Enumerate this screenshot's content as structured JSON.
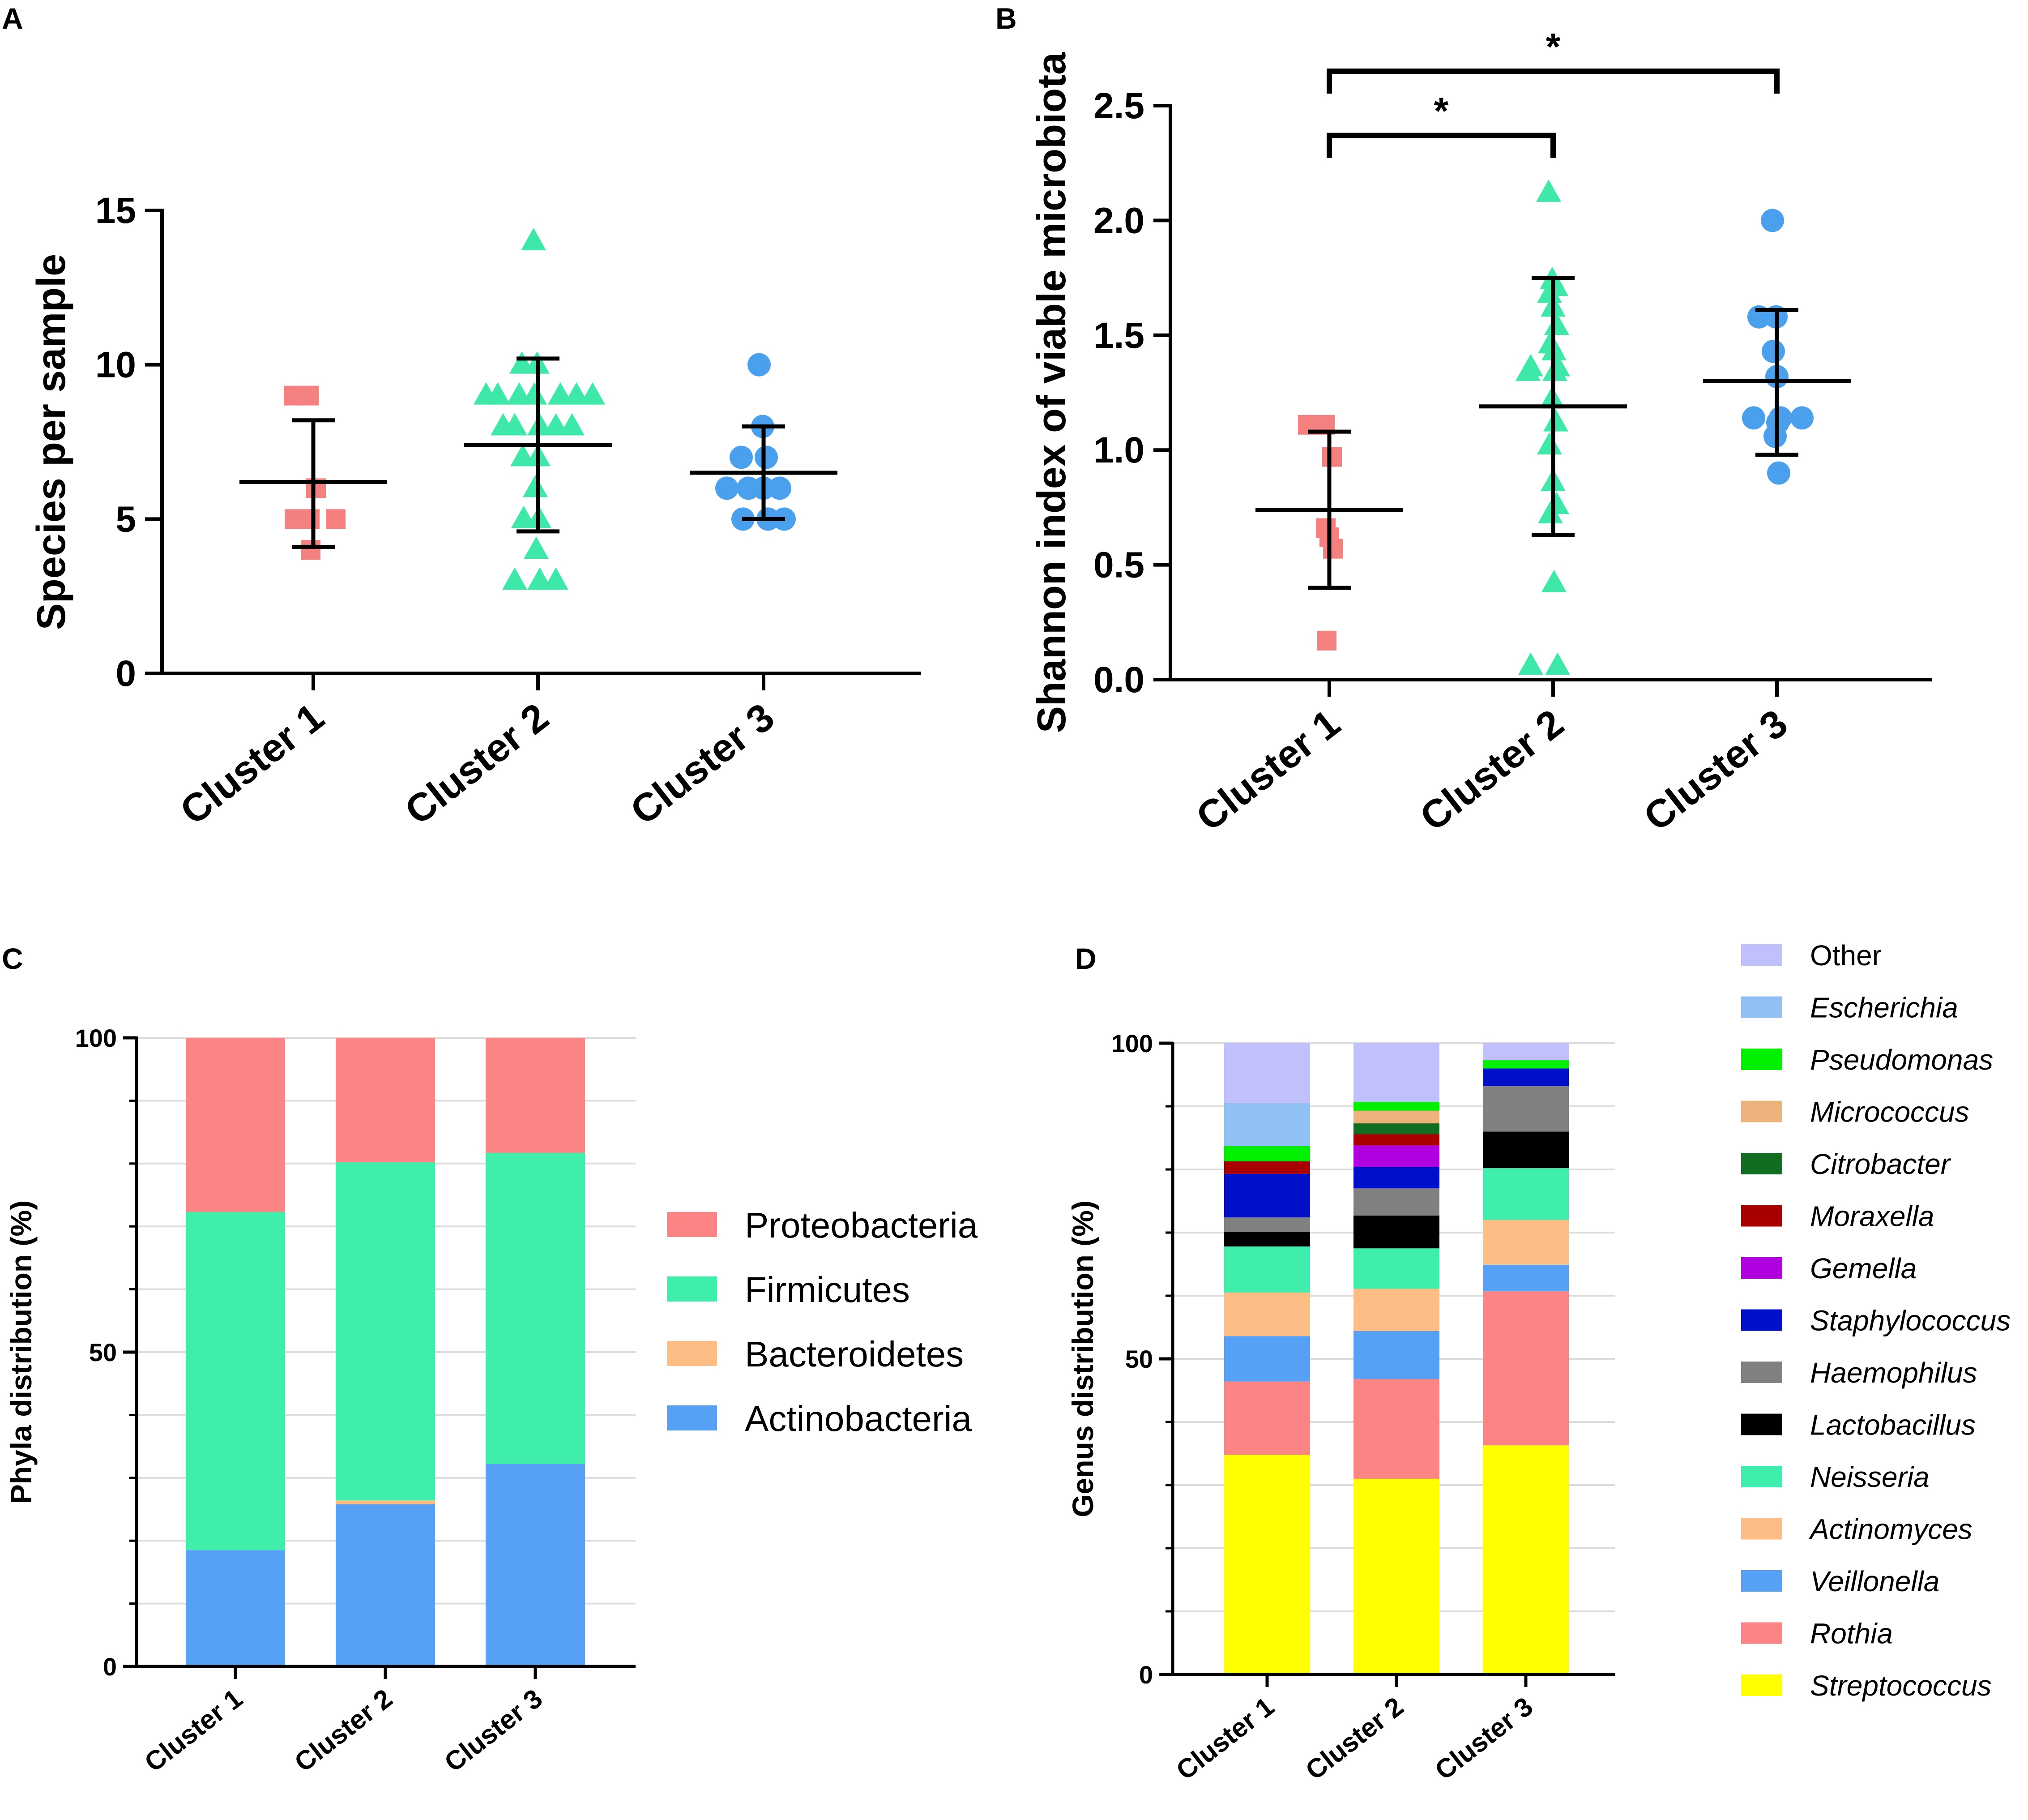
{
  "chart_data": [
    {
      "panel": "A",
      "type": "scatter",
      "ylabel": "Species per sample",
      "ylim": [
        0,
        15
      ],
      "yticks": [
        "0",
        "5",
        "10",
        "15"
      ],
      "categories": [
        "Cluster 1",
        "Cluster 2",
        "Cluster 3"
      ],
      "groups": [
        {
          "name": "Cluster 1",
          "marker": "square",
          "color": "#f48080",
          "points": [
            9,
            9,
            6,
            5,
            5,
            5,
            4
          ],
          "mean": 6.2,
          "sd_low": 4.1,
          "sd_high": 8.2
        },
        {
          "name": "Cluster 2",
          "marker": "triangle",
          "color": "#3ee8a8",
          "points": [
            14,
            10,
            10,
            9,
            9,
            9,
            9,
            9,
            9,
            9,
            8,
            8,
            8,
            8,
            8,
            7,
            7,
            6,
            5,
            5,
            4,
            3,
            3,
            3
          ],
          "mean": 7.4,
          "sd_low": 4.6,
          "sd_high": 10.2
        },
        {
          "name": "Cluster 3",
          "marker": "circle",
          "color": "#4aa0ec",
          "points": [
            10,
            8,
            7,
            7,
            6,
            6,
            6,
            6,
            5,
            5,
            5
          ],
          "mean": 6.5,
          "sd_low": 5.0,
          "sd_high": 8.0
        }
      ]
    },
    {
      "panel": "B",
      "type": "scatter",
      "ylabel": "Shannon index of viable microbiota",
      "ylim": [
        0,
        2.5
      ],
      "yticks": [
        "0.0",
        "0.5",
        "1.0",
        "1.5",
        "2.0",
        "2.5"
      ],
      "categories": [
        "Cluster 1",
        "Cluster 2",
        "Cluster 3"
      ],
      "significance": [
        {
          "from": "Cluster 1",
          "to": "Cluster 2",
          "label": "*",
          "level": 2.37
        },
        {
          "from": "Cluster 1",
          "to": "Cluster 3",
          "label": "*",
          "level": 2.65
        }
      ],
      "groups": [
        {
          "name": "Cluster 1",
          "marker": "square",
          "color": "#f48080",
          "points": [
            1.11,
            1.11,
            0.97,
            0.66,
            0.62,
            0.57,
            0.17
          ],
          "mean": 0.74,
          "sd_low": 0.4,
          "sd_high": 1.08
        },
        {
          "name": "Cluster 2",
          "marker": "triangle",
          "color": "#3ee8a8",
          "points": [
            2.12,
            1.74,
            1.71,
            1.68,
            1.62,
            1.54,
            1.46,
            1.43,
            1.36,
            1.36,
            1.34,
            1.34,
            1.22,
            1.12,
            1.02,
            0.86,
            0.76,
            0.72,
            0.42,
            0.06,
            0.06
          ],
          "mean": 1.19,
          "sd_low": 0.63,
          "sd_high": 1.75
        },
        {
          "name": "Cluster 3",
          "marker": "circle",
          "color": "#4aa0ec",
          "points": [
            2.0,
            1.58,
            1.58,
            1.43,
            1.32,
            1.14,
            1.14,
            1.12,
            1.14,
            1.06,
            0.9
          ],
          "mean": 1.3,
          "sd_low": 0.98,
          "sd_high": 1.61
        }
      ]
    },
    {
      "panel": "C",
      "type": "bar",
      "stacked": true,
      "ylabel": "Phyla distribution (%)",
      "ylim": [
        0,
        100
      ],
      "yticks": [
        "0",
        "50",
        "100"
      ],
      "categories": [
        "Cluster 1",
        "Cluster 2",
        "Cluster 3"
      ],
      "series": [
        {
          "name": "Actinobacteria",
          "color": "#56a0f6",
          "values": [
            18.5,
            25.8,
            32.2
          ]
        },
        {
          "name": "Bacteroidetes",
          "color": "#fdbd84",
          "values": [
            0,
            0.6,
            0
          ]
        },
        {
          "name": "Firmicutes",
          "color": "#40eeac",
          "values": [
            53.8,
            53.8,
            49.5
          ]
        },
        {
          "name": "Proteobacteria",
          "color": "#fd8484",
          "values": [
            27.7,
            19.8,
            18.3
          ]
        }
      ],
      "legend_order": [
        "Proteobacteria",
        "Firmicutes",
        "Bacteroidetes",
        "Actinobacteria"
      ]
    },
    {
      "panel": "D",
      "type": "bar",
      "stacked": true,
      "ylabel": "Genus distribution (%)",
      "ylim": [
        0,
        100
      ],
      "yticks": [
        "0",
        "50",
        "100"
      ],
      "categories": [
        "Cluster 1",
        "Cluster 2",
        "Cluster 3"
      ],
      "series": [
        {
          "name": "Streptococcus",
          "color": "#ffff00",
          "values": [
            34.8,
            31.0,
            36.3
          ]
        },
        {
          "name": "Rothia",
          "color": "#fd8484",
          "values": [
            11.6,
            15.8,
            24.4
          ]
        },
        {
          "name": "Veillonella",
          "color": "#56a0f6",
          "values": [
            7.2,
            7.6,
            4.2
          ]
        },
        {
          "name": "Actinomyces",
          "color": "#fdbd84",
          "values": [
            6.9,
            6.7,
            7.1
          ]
        },
        {
          "name": "Neisseria",
          "color": "#40eeac",
          "values": [
            7.3,
            6.4,
            8.2
          ]
        },
        {
          "name": "Lactobacillus",
          "color": "#000000",
          "values": [
            2.3,
            5.2,
            5.8
          ]
        },
        {
          "name": "Haemophilus",
          "color": "#808080",
          "values": [
            2.3,
            4.3,
            7.2
          ]
        },
        {
          "name": "Staphylococcus",
          "color": "#0010c8",
          "values": [
            6.9,
            3.4,
            2.8
          ]
        },
        {
          "name": "Gemella",
          "color": "#b000e0",
          "values": [
            0,
            3.4,
            0
          ]
        },
        {
          "name": "Moraxella",
          "color": "#a80000",
          "values": [
            2.0,
            1.8,
            0
          ]
        },
        {
          "name": "Citrobacter",
          "color": "#116d20",
          "values": [
            0,
            1.7,
            0
          ]
        },
        {
          "name": "Micrococcus",
          "color": "#ecb47c",
          "values": [
            0,
            2.0,
            0
          ]
        },
        {
          "name": "Pseudomonas",
          "color": "#00f000",
          "values": [
            2.4,
            1.4,
            1.3
          ]
        },
        {
          "name": "Escherichia",
          "color": "#90c0f4",
          "values": [
            6.8,
            0,
            0
          ]
        },
        {
          "name": "Other",
          "color": "#c0c0fc",
          "values": [
            9.5,
            9.3,
            2.7
          ]
        }
      ],
      "legend_order": [
        "Other",
        "Escherichia",
        "Pseudomonas",
        "Micrococcus",
        "Citrobacter",
        "Moraxella",
        "Gemella",
        "Staphylococcus",
        "Haemophilus",
        "Lactobacillus",
        "Neisseria",
        "Actinomyces",
        "Veillonella",
        "Rothia",
        "Streptococcus"
      ],
      "italic_entries": [
        "Escherichia",
        "Pseudomonas",
        "Micrococcus",
        "Citrobacter",
        "Moraxella",
        "Gemella",
        "Staphylococcus",
        "Haemophilus",
        "Lactobacillus",
        "Neisseria",
        "Actinomyces",
        "Veillonella",
        "Rothia",
        "Streptococcus"
      ]
    }
  ]
}
